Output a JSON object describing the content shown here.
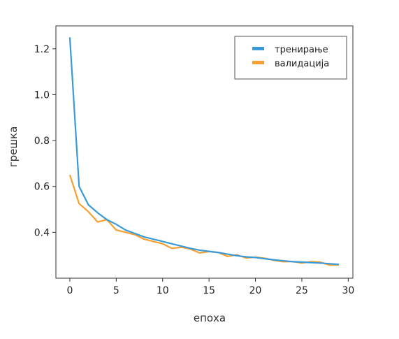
{
  "chart_data": {
    "type": "line",
    "xlabel": "епоха",
    "ylabel": "грешка",
    "xlim": [
      -1.5,
      30.5
    ],
    "ylim": [
      0.2,
      1.3
    ],
    "xticks": [
      0,
      5,
      10,
      15,
      20,
      25,
      30
    ],
    "yticks": [
      0.4,
      0.6,
      0.8,
      1.0,
      1.2
    ],
    "ytick_labels": [
      "0.4",
      "0.6",
      "0.8",
      "1.0",
      "1.2"
    ],
    "grid": false,
    "legend_position": "top-right",
    "x": [
      0,
      1,
      2,
      3,
      4,
      5,
      6,
      7,
      8,
      9,
      10,
      11,
      12,
      13,
      14,
      15,
      16,
      17,
      18,
      19,
      20,
      21,
      22,
      23,
      24,
      25,
      26,
      27,
      28,
      29
    ],
    "series": [
      {
        "name": "тренирање",
        "color": "#3a9ad9",
        "values": [
          1.25,
          0.6,
          0.52,
          0.485,
          0.455,
          0.435,
          0.41,
          0.395,
          0.38,
          0.37,
          0.36,
          0.35,
          0.34,
          0.33,
          0.322,
          0.317,
          0.312,
          0.305,
          0.298,
          0.293,
          0.29,
          0.285,
          0.28,
          0.276,
          0.272,
          0.27,
          0.268,
          0.266,
          0.263,
          0.26
        ]
      },
      {
        "name": "валидација",
        "color": "#f7a030",
        "values": [
          0.65,
          0.525,
          0.49,
          0.445,
          0.455,
          0.41,
          0.4,
          0.39,
          0.37,
          0.36,
          0.35,
          0.33,
          0.335,
          0.327,
          0.31,
          0.316,
          0.312,
          0.295,
          0.302,
          0.288,
          0.292,
          0.287,
          0.278,
          0.272,
          0.273,
          0.266,
          0.272,
          0.27,
          0.257,
          0.258
        ]
      }
    ]
  }
}
